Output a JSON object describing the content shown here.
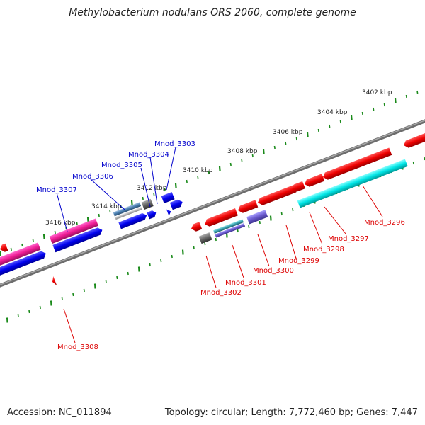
{
  "title": "Methylobacterium nodulans ORS 2060, complete genome",
  "footer": {
    "accession": "Accession: NC_011894",
    "summary": "Topology: circular; Length: 7,772,460 bp; Genes: 7,447"
  },
  "ticks": [
    "3402 kbp",
    "3404 kbp",
    "3406 kbp",
    "3408 kbp",
    "3410 kbp",
    "3412 kbp",
    "3414 kbp",
    "3416 kbp"
  ],
  "labels_upper": [
    "Mnod_3303",
    "Mnod_3304",
    "Mnod_3305",
    "Mnod_3306",
    "Mnod_3307"
  ],
  "labels_lower": [
    "Mnod_3296",
    "Mnod_3297",
    "Mnod_3298",
    "Mnod_3299",
    "Mnod_3300",
    "Mnod_3301",
    "Mnod_3302",
    "Mnod_3308"
  ],
  "colors": {
    "forward_label": "#0000cc",
    "reverse_label": "#dd0000",
    "backbone": "#808080",
    "tick": "#1a8a1a"
  }
}
